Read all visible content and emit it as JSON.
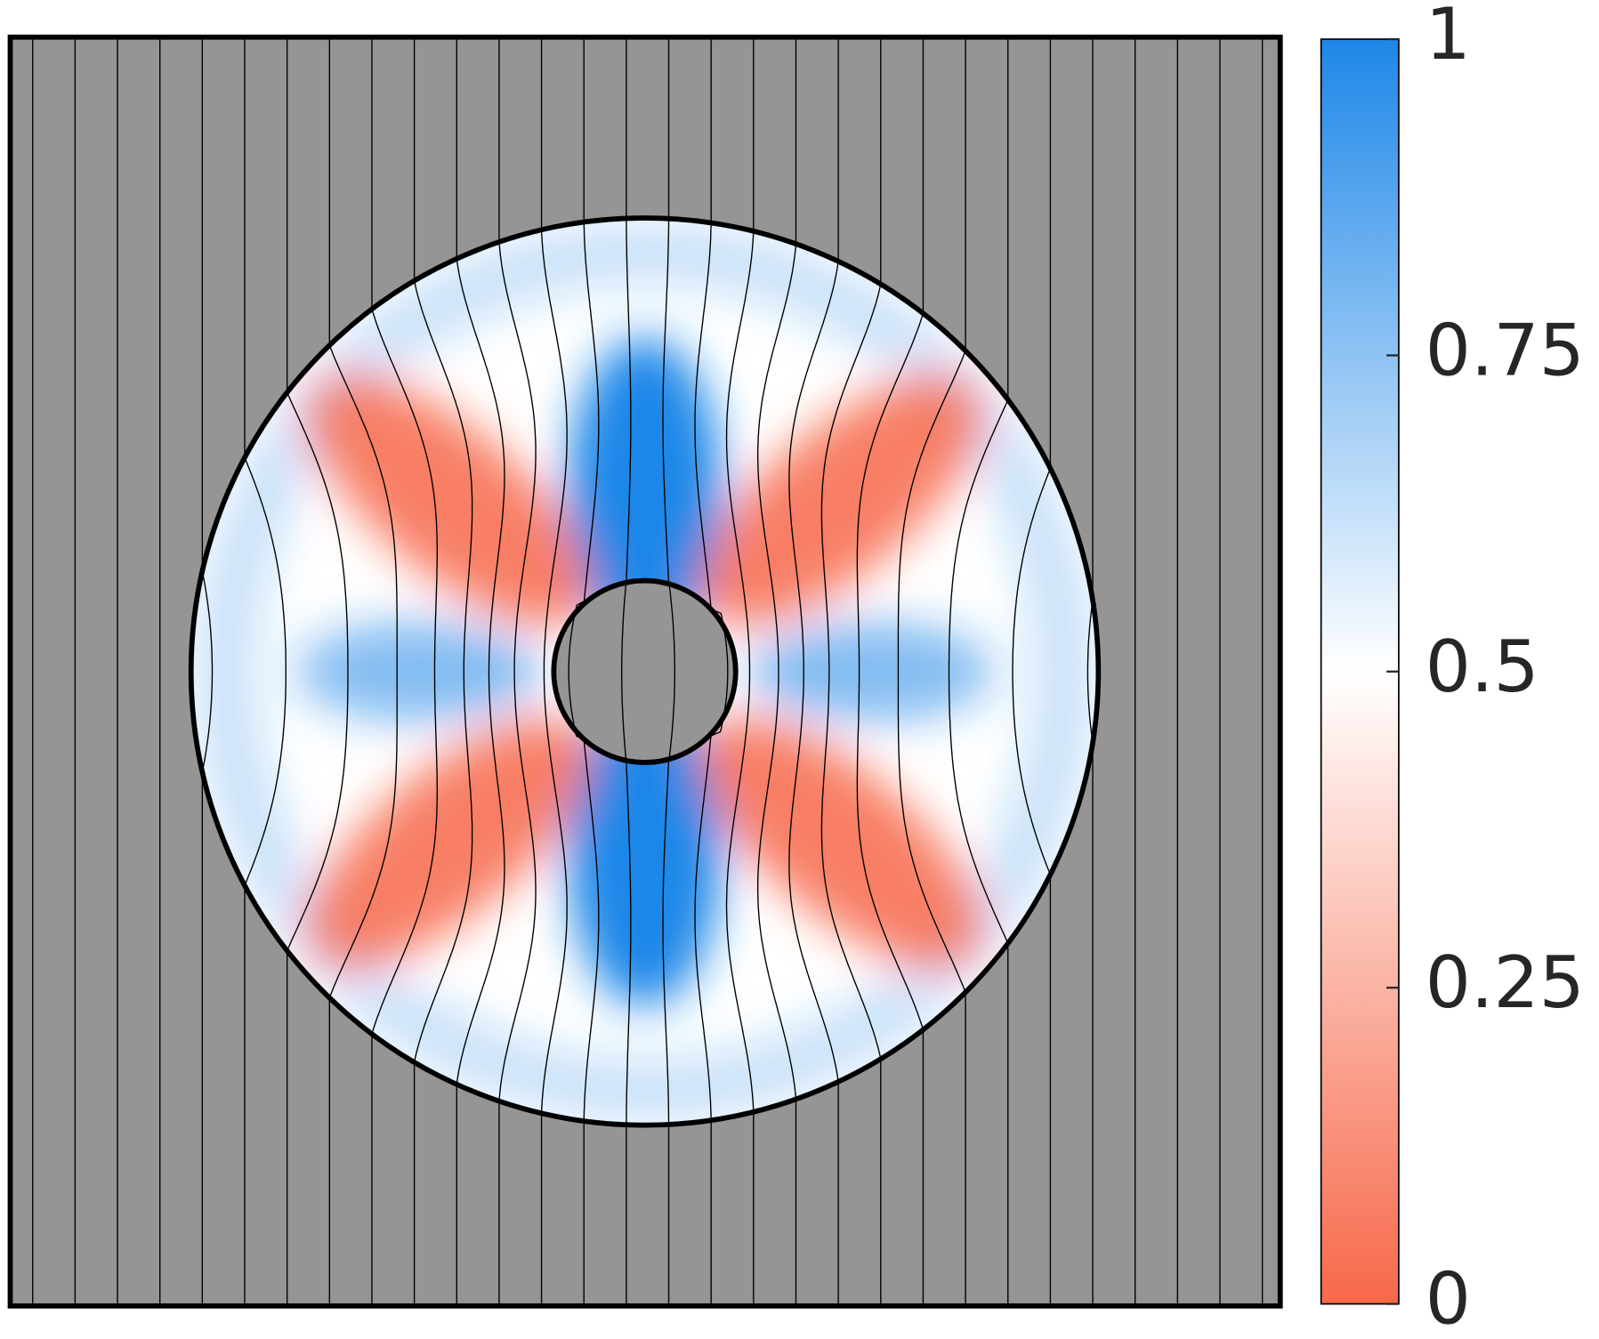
{
  "chart_data": {
    "type": "field",
    "colorbar": {
      "clim": [
        0,
        1
      ],
      "ticks": [
        0,
        0.25,
        0.5,
        0.75,
        1
      ],
      "colors": [
        "#f7684a",
        "#ffffff",
        "#1e87e8"
      ]
    },
    "background": "#959595"
  }
}
